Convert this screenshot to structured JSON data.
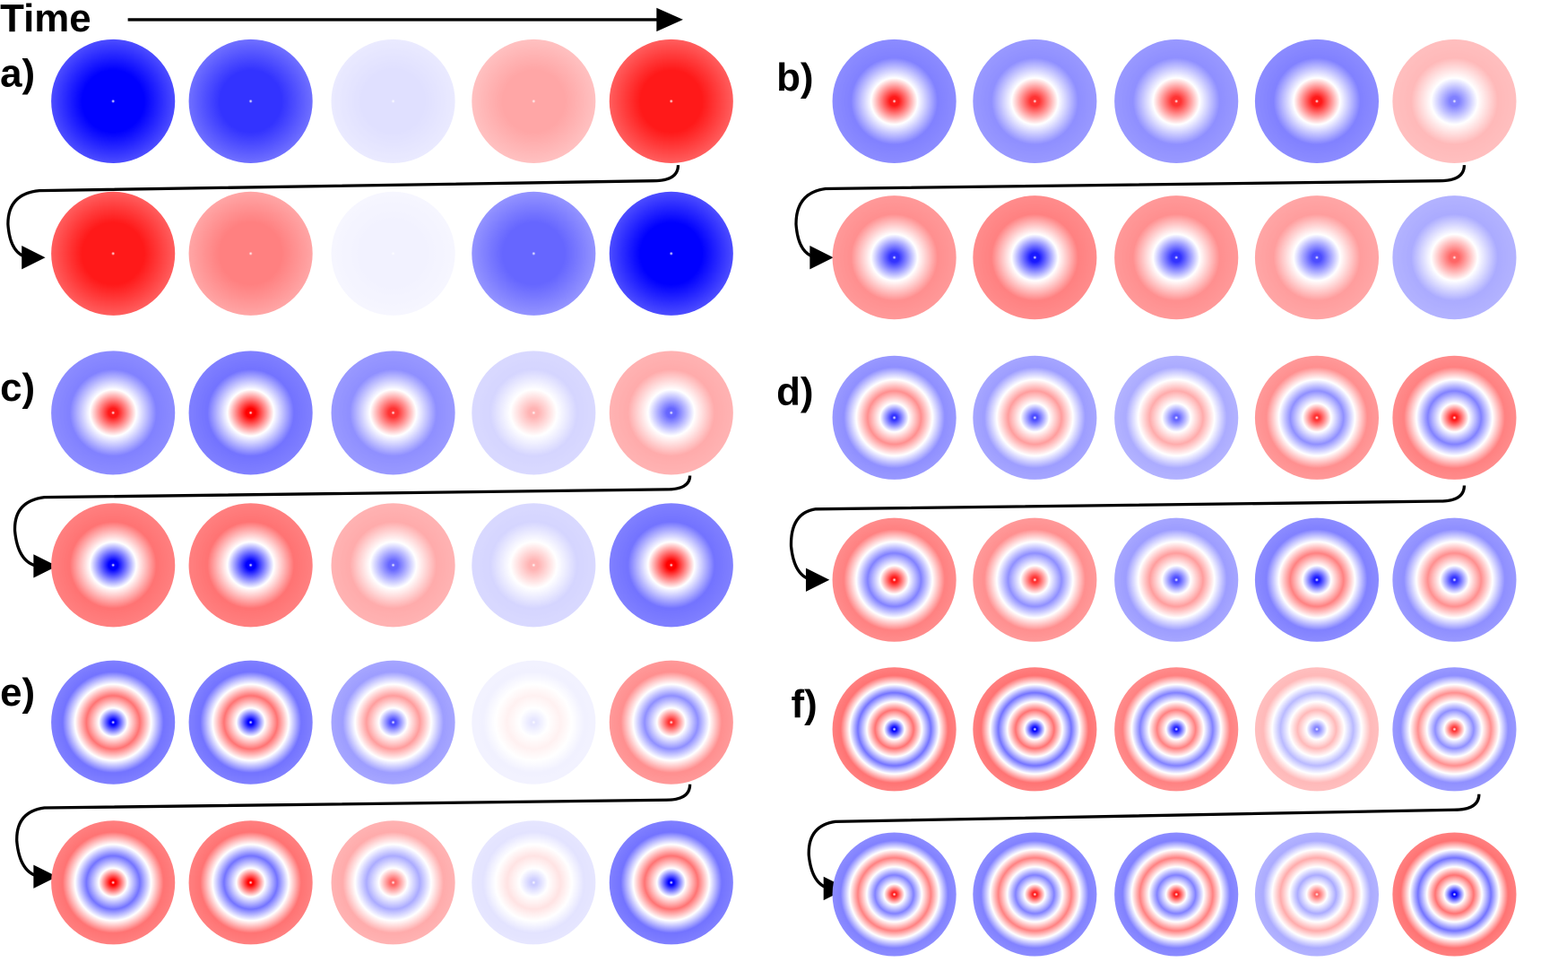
{
  "time_label": "Time",
  "panels": [
    {
      "label": "a)"
    },
    {
      "label": "b)"
    },
    {
      "label": "c)"
    },
    {
      "label": "d)"
    },
    {
      "label": "e)"
    },
    {
      "label": "f)"
    }
  ]
}
